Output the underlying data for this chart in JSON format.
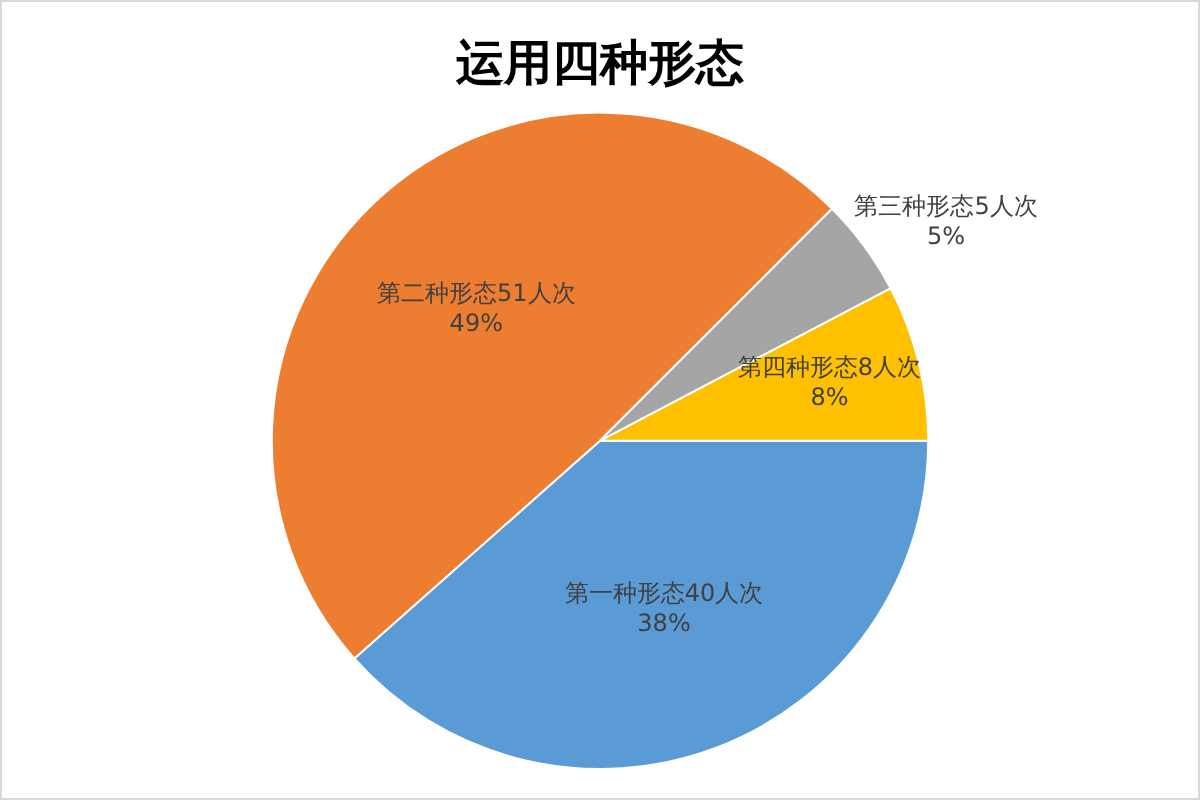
{
  "chart_data": {
    "type": "pie",
    "title": "运用四种形态",
    "categories": [
      "第一种形态",
      "第二种形态",
      "第三种形态",
      "第四种形态"
    ],
    "values": [
      40,
      51,
      5,
      8
    ],
    "colors": [
      "#5b9bd5",
      "#ed7d31",
      "#a5a5a5",
      "#ffc000"
    ],
    "value_labels": [
      "40人次\n38%",
      "51人次\n49%",
      "5人次\n5%",
      "8人次\n8%"
    ],
    "legend": false
  }
}
